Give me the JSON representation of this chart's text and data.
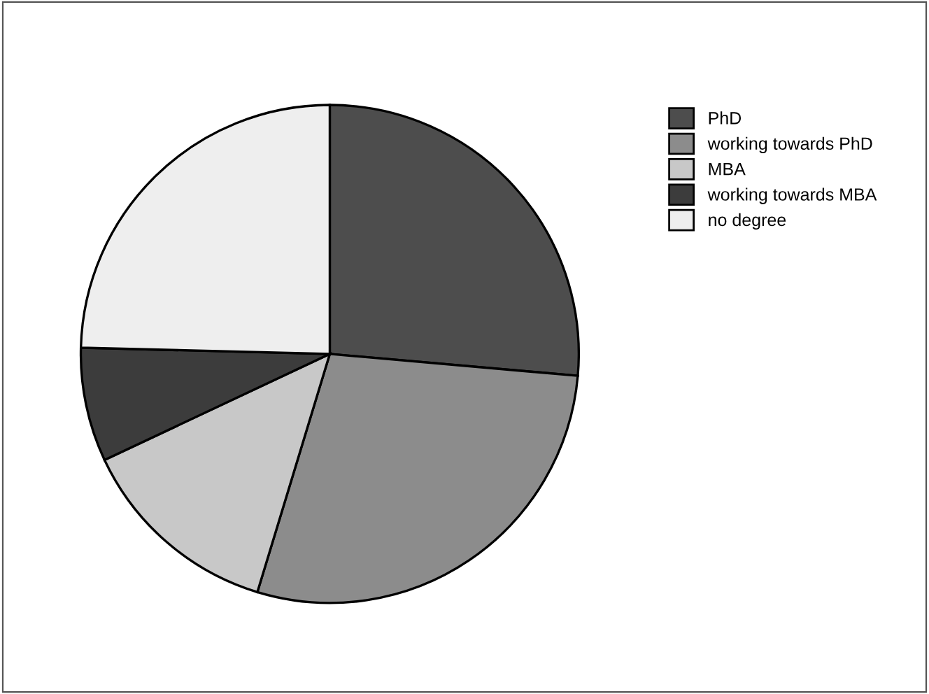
{
  "chart_data": {
    "type": "pie",
    "categories": [
      "PhD",
      "working towards PhD",
      "MBA",
      "working towards MBA",
      "no degree"
    ],
    "values": [
      26.4,
      28.3,
      13.3,
      7.4,
      24.6
    ],
    "colors": [
      "#4d4d4d",
      "#8c8c8c",
      "#c8c8c8",
      "#3c3c3c",
      "#eeeeee"
    ],
    "legend": "top right"
  }
}
